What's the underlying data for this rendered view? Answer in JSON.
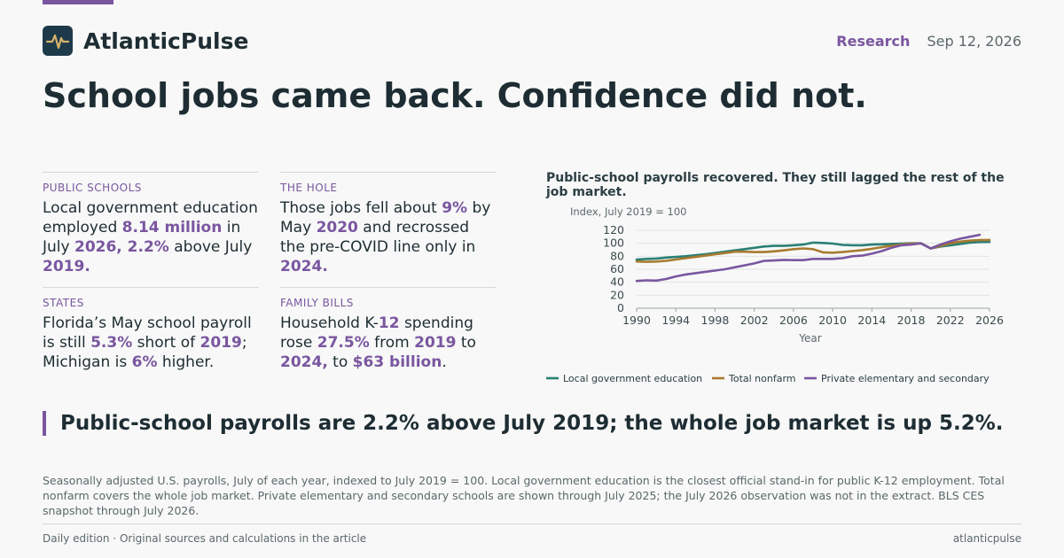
{
  "header": {
    "brand": "AtlanticPulse",
    "section": "Research",
    "date": "Sep 12, 2026"
  },
  "headline": "School jobs came back. Confidence did not.",
  "stats": [
    {
      "label": "PUBLIC SCHOOLS",
      "parts": [
        {
          "t": "Local government education employed "
        },
        {
          "t": "8.14 million",
          "h": true
        },
        {
          "t": " in July "
        },
        {
          "t": "2026, 2.2%",
          "h": true
        },
        {
          "t": " above July "
        },
        {
          "t": "2019.",
          "h": true
        }
      ]
    },
    {
      "label": "THE HOLE",
      "parts": [
        {
          "t": "Those jobs fell about "
        },
        {
          "t": "9%",
          "h": true
        },
        {
          "t": " by May "
        },
        {
          "t": "2020",
          "h": true
        },
        {
          "t": " and recrossed the pre-COVID line only in "
        },
        {
          "t": "2024.",
          "h": true
        }
      ]
    },
    {
      "label": "STATES",
      "parts": [
        {
          "t": "Florida’s May school payroll is still "
        },
        {
          "t": "5.3%",
          "h": true
        },
        {
          "t": " short of "
        },
        {
          "t": "2019",
          "h": true
        },
        {
          "t": "; Michigan is "
        },
        {
          "t": "6%",
          "h": true
        },
        {
          "t": " higher."
        }
      ]
    },
    {
      "label": "FAMILY BILLS",
      "parts": [
        {
          "t": "Household K-"
        },
        {
          "t": "12",
          "h": true
        },
        {
          "t": " spending rose "
        },
        {
          "t": "27.5%",
          "h": true
        },
        {
          "t": " from "
        },
        {
          "t": "2019",
          "h": true
        },
        {
          "t": " to "
        },
        {
          "t": "2024,",
          "h": true
        },
        {
          "t": " to "
        },
        {
          "t": "$63 billion",
          "h": true
        },
        {
          "t": "."
        }
      ]
    }
  ],
  "chart_data": {
    "type": "line",
    "title": "Public-school payrolls recovered. They still lagged the rest of the job market.",
    "ylabel": "Index, July 2019 = 100",
    "xlabel": "Year",
    "ylim": [
      0,
      120
    ],
    "yticks": [
      0,
      20,
      40,
      60,
      80,
      100,
      120
    ],
    "xlim": [
      1990,
      2026
    ],
    "xticks": [
      1990,
      1994,
      1998,
      2002,
      2006,
      2010,
      2014,
      2018,
      2022,
      2026
    ],
    "grid": true,
    "legend_position": "bottom",
    "series": [
      {
        "name": "Local government education",
        "color": "#2a7f75",
        "x": [
          1990,
          1991,
          1992,
          1993,
          1994,
          1995,
          1996,
          1997,
          1998,
          1999,
          2000,
          2001,
          2002,
          2003,
          2004,
          2005,
          2006,
          2007,
          2008,
          2009,
          2010,
          2011,
          2012,
          2013,
          2014,
          2015,
          2016,
          2017,
          2018,
          2019,
          2020,
          2021,
          2022,
          2023,
          2024,
          2025,
          2026
        ],
        "y": [
          75,
          76,
          76.5,
          78,
          79,
          80,
          81.5,
          83,
          85,
          87,
          89,
          91,
          93,
          95,
          96,
          96,
          97,
          98,
          101,
          100.5,
          99.5,
          97.5,
          97,
          97,
          98,
          98.5,
          99,
          99.5,
          100,
          100,
          92,
          95,
          97,
          99,
          101,
          102,
          102.2
        ]
      },
      {
        "name": "Total nonfarm",
        "color": "#a87a2f",
        "x": [
          1990,
          1991,
          1992,
          1993,
          1994,
          1995,
          1996,
          1997,
          1998,
          1999,
          2000,
          2001,
          2002,
          2003,
          2004,
          2005,
          2006,
          2007,
          2008,
          2009,
          2010,
          2011,
          2012,
          2013,
          2014,
          2015,
          2016,
          2017,
          2018,
          2019,
          2020,
          2021,
          2022,
          2023,
          2024,
          2025,
          2026
        ],
        "y": [
          72,
          71.5,
          71.8,
          73,
          75,
          77,
          79,
          81,
          83,
          85,
          87,
          87,
          86.5,
          86.5,
          87.5,
          89,
          91,
          92,
          91,
          86,
          85.5,
          86.5,
          88,
          89.5,
          91.5,
          94,
          96,
          98,
          99.5,
          100,
          92,
          96,
          100,
          102.5,
          104,
          105,
          105.2
        ]
      },
      {
        "name": "Private elementary and secondary",
        "color": "#7a56a0",
        "x": [
          1990,
          1991,
          1992,
          1993,
          1994,
          1995,
          1996,
          1997,
          1998,
          1999,
          2000,
          2001,
          2002,
          2003,
          2004,
          2005,
          2006,
          2007,
          2008,
          2009,
          2010,
          2011,
          2012,
          2013,
          2014,
          2015,
          2016,
          2017,
          2018,
          2019,
          2020,
          2021,
          2022,
          2023,
          2024,
          2025
        ],
        "y": [
          42,
          43,
          42.5,
          45,
          49,
          52,
          54,
          56,
          58,
          60,
          63,
          66,
          69,
          73,
          73.5,
          74.5,
          74,
          74,
          76,
          76,
          76,
          77,
          80,
          81,
          84,
          88,
          93,
          97,
          98,
          100,
          92,
          98,
          103,
          107,
          110,
          113
        ]
      }
    ]
  },
  "quote": "Public-school payrolls are 2.2% above July 2019; the whole job market is up 5.2%.",
  "note": "Seasonally adjusted U.S. payrolls, July of each year, indexed to July 2019 = 100. Local government education is the closest official stand-in for public K-12 employment. Total nonfarm covers the whole job market. Private elementary and secondary schools are shown through July 2025; the July 2026 observation was not in the extract. BLS CES snapshot through July 2026.",
  "footer": {
    "left": "Daily edition · Original sources and calculations in the article",
    "right": "atlanticpulse"
  },
  "icons": {
    "logo": "pulse-wave-icon"
  },
  "colors": {
    "accent": "#7a56a0",
    "logo_bg": "#1e3a4a",
    "logo_stroke": "#d9b36a"
  }
}
